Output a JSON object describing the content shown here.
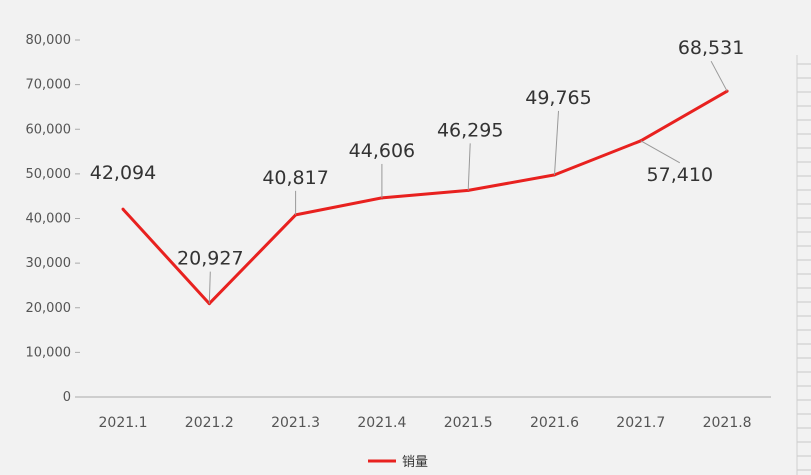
{
  "chart_data": {
    "type": "line",
    "title": "",
    "xlabel": "",
    "ylabel": "",
    "categories": [
      "2021.1",
      "2021.2",
      "2021.3",
      "2021.4",
      "2021.5",
      "2021.6",
      "2021.7",
      "2021.8"
    ],
    "series": [
      {
        "name": "销量",
        "values": [
          42094,
          20927,
          40817,
          44606,
          46295,
          49765,
          57410,
          68531
        ],
        "value_labels": [
          "42,094",
          "20,927",
          "40,817",
          "44,606",
          "46,295",
          "49,765",
          "57,410",
          "68,531"
        ],
        "color": "#e8211f"
      }
    ],
    "ylim": [
      0,
      80000
    ],
    "yticks": [
      0,
      10000,
      20000,
      30000,
      40000,
      50000,
      60000,
      70000,
      80000
    ],
    "ytick_labels": [
      "0",
      "10,000",
      "20,000",
      "30,000",
      "40,000",
      "50,000",
      "60,000",
      "70,000",
      "80,000"
    ],
    "grid": false,
    "legend": "bottom-center"
  },
  "colors": {
    "background": "#f2f2f2",
    "series": "#e8211f",
    "axis": "#aaaaaa",
    "leader": "#999999"
  }
}
